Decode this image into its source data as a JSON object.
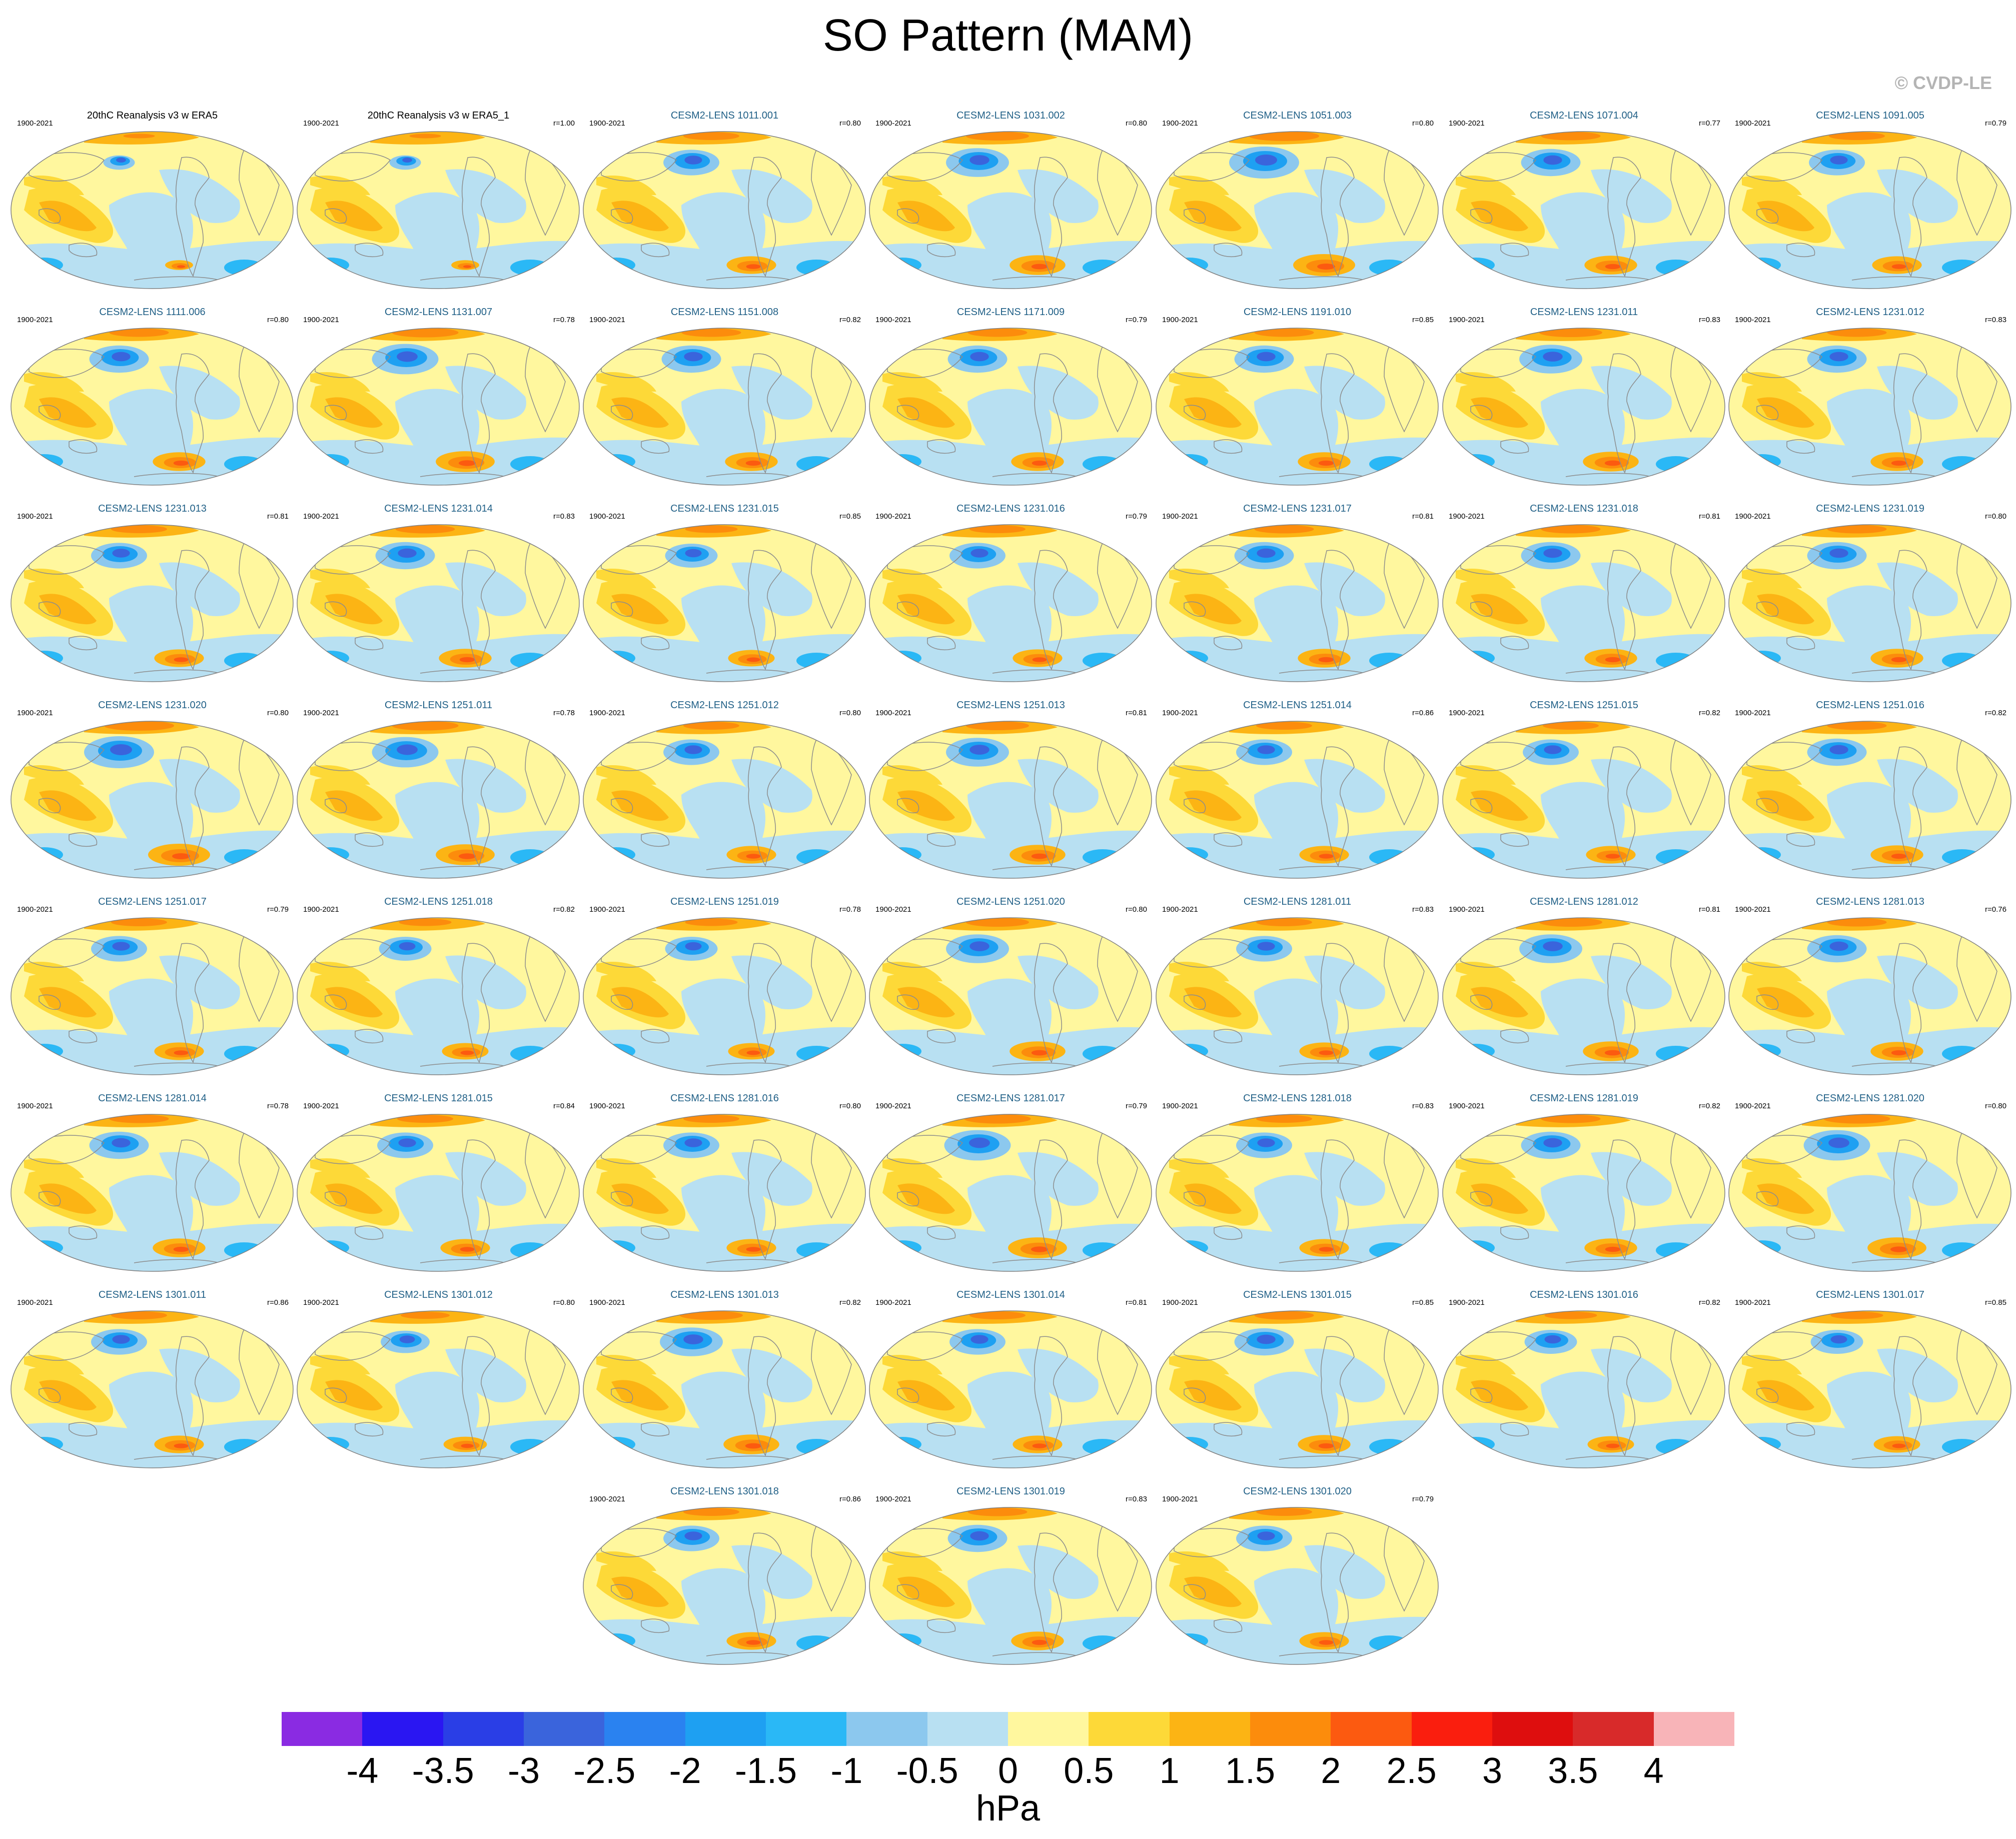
{
  "figure": {
    "title": "SO Pattern (MAM)",
    "watermark": "© CVDP-LE",
    "units": "hPa"
  },
  "panels": [
    {
      "title": "20thC Reanalysis v3 w ERA5",
      "period": "1900-2021",
      "r": "",
      "obs": true,
      "strength": 0.45
    },
    {
      "title": "20thC Reanalysis v3 w ERA5_1",
      "period": "1900-2021",
      "r": "r=1.00",
      "obs": true,
      "strength": 0.45
    },
    {
      "title": "CESM2-LENS 1011.001",
      "period": "1900-2021",
      "r": "r=0.80",
      "strength": 0.8
    },
    {
      "title": "CESM2-LENS 1031.002",
      "period": "1900-2021",
      "r": "r=0.80",
      "strength": 0.9
    },
    {
      "title": "CESM2-LENS 1051.003",
      "period": "1900-2021",
      "r": "r=0.80",
      "strength": 1.0
    },
    {
      "title": "CESM2-LENS 1071.004",
      "period": "1900-2021",
      "r": "r=0.77",
      "strength": 0.85
    },
    {
      "title": "CESM2-LENS 1091.005",
      "period": "1900-2021",
      "r": "r=0.79",
      "strength": 0.8
    },
    {
      "title": "CESM2-LENS 1111.006",
      "period": "1900-2021",
      "r": "r=0.80",
      "strength": 0.85
    },
    {
      "title": "CESM2-LENS 1131.007",
      "period": "1900-2021",
      "r": "r=0.78",
      "strength": 0.95
    },
    {
      "title": "CESM2-LENS 1151.008",
      "period": "1900-2021",
      "r": "r=0.82",
      "strength": 0.85
    },
    {
      "title": "CESM2-LENS 1171.009",
      "period": "1900-2021",
      "r": "r=0.79",
      "strength": 0.85
    },
    {
      "title": "CESM2-LENS 1191.010",
      "period": "1900-2021",
      "r": "r=0.85",
      "strength": 0.85
    },
    {
      "title": "CESM2-LENS 1231.011",
      "period": "1900-2021",
      "r": "r=0.83",
      "strength": 0.9
    },
    {
      "title": "CESM2-LENS 1231.012",
      "period": "1900-2021",
      "r": "r=0.83",
      "strength": 0.85
    },
    {
      "title": "CESM2-LENS 1231.013",
      "period": "1900-2021",
      "r": "r=0.81",
      "strength": 0.8
    },
    {
      "title": "CESM2-LENS 1231.014",
      "period": "1900-2021",
      "r": "r=0.83",
      "strength": 0.85
    },
    {
      "title": "CESM2-LENS 1231.015",
      "period": "1900-2021",
      "r": "r=0.85",
      "strength": 0.75
    },
    {
      "title": "CESM2-LENS 1231.016",
      "period": "1900-2021",
      "r": "r=0.79",
      "strength": 0.8
    },
    {
      "title": "CESM2-LENS 1231.017",
      "period": "1900-2021",
      "r": "r=0.81",
      "strength": 0.85
    },
    {
      "title": "CESM2-LENS 1231.018",
      "period": "1900-2021",
      "r": "r=0.81",
      "strength": 0.85
    },
    {
      "title": "CESM2-LENS 1231.019",
      "period": "1900-2021",
      "r": "r=0.80",
      "strength": 0.85
    },
    {
      "title": "CESM2-LENS 1231.020",
      "period": "1900-2021",
      "r": "r=0.80",
      "strength": 1.0
    },
    {
      "title": "CESM2-LENS 1251.011",
      "period": "1900-2021",
      "r": "r=0.78",
      "strength": 0.95
    },
    {
      "title": "CESM2-LENS 1251.012",
      "period": "1900-2021",
      "r": "r=0.80",
      "strength": 0.8
    },
    {
      "title": "CESM2-LENS 1251.013",
      "period": "1900-2021",
      "r": "r=0.81",
      "strength": 0.9
    },
    {
      "title": "CESM2-LENS 1251.014",
      "period": "1900-2021",
      "r": "r=0.86",
      "strength": 0.8
    },
    {
      "title": "CESM2-LENS 1251.015",
      "period": "1900-2021",
      "r": "r=0.82",
      "strength": 0.8
    },
    {
      "title": "CESM2-LENS 1251.016",
      "period": "1900-2021",
      "r": "r=0.82",
      "strength": 0.85
    },
    {
      "title": "CESM2-LENS 1251.017",
      "period": "1900-2021",
      "r": "r=0.79",
      "strength": 0.8
    },
    {
      "title": "CESM2-LENS 1251.018",
      "period": "1900-2021",
      "r": "r=0.82",
      "strength": 0.75
    },
    {
      "title": "CESM2-LENS 1251.019",
      "period": "1900-2021",
      "r": "r=0.78",
      "strength": 0.75
    },
    {
      "title": "CESM2-LENS 1251.020",
      "period": "1900-2021",
      "r": "r=0.80",
      "strength": 0.9
    },
    {
      "title": "CESM2-LENS 1281.011",
      "period": "1900-2021",
      "r": "r=0.83",
      "strength": 0.8
    },
    {
      "title": "CESM2-LENS 1281.012",
      "period": "1900-2021",
      "r": "r=0.81",
      "strength": 0.9
    },
    {
      "title": "CESM2-LENS 1281.013",
      "period": "1900-2021",
      "r": "r=0.76",
      "strength": 0.85
    },
    {
      "title": "CESM2-LENS 1281.014",
      "period": "1900-2021",
      "r": "r=0.78",
      "strength": 0.85
    },
    {
      "title": "CESM2-LENS 1281.015",
      "period": "1900-2021",
      "r": "r=0.84",
      "strength": 0.8
    },
    {
      "title": "CESM2-LENS 1281.016",
      "period": "1900-2021",
      "r": "r=0.80",
      "strength": 0.8
    },
    {
      "title": "CESM2-LENS 1281.017",
      "period": "1900-2021",
      "r": "r=0.79",
      "strength": 0.95
    },
    {
      "title": "CESM2-LENS 1281.018",
      "period": "1900-2021",
      "r": "r=0.83",
      "strength": 0.8
    },
    {
      "title": "CESM2-LENS 1281.019",
      "period": "1900-2021",
      "r": "r=0.82",
      "strength": 0.85
    },
    {
      "title": "CESM2-LENS 1281.020",
      "period": "1900-2021",
      "r": "r=0.80",
      "strength": 0.95
    },
    {
      "title": "CESM2-LENS 1301.011",
      "period": "1900-2021",
      "r": "r=0.86",
      "strength": 0.8
    },
    {
      "title": "CESM2-LENS 1301.012",
      "period": "1900-2021",
      "r": "r=0.80",
      "strength": 0.7
    },
    {
      "title": "CESM2-LENS 1301.013",
      "period": "1900-2021",
      "r": "r=0.82",
      "strength": 0.9
    },
    {
      "title": "CESM2-LENS 1301.014",
      "period": "1900-2021",
      "r": "r=0.81",
      "strength": 0.8
    },
    {
      "title": "CESM2-LENS 1301.015",
      "period": "1900-2021",
      "r": "r=0.85",
      "strength": 0.85
    },
    {
      "title": "CESM2-LENS 1301.016",
      "period": "1900-2021",
      "r": "r=0.82",
      "strength": 0.75
    },
    {
      "title": "CESM2-LENS 1301.017",
      "period": "1900-2021",
      "r": "r=0.85",
      "strength": 0.75
    },
    {
      "title": "CESM2-LENS 1301.018",
      "period": "1900-2021",
      "r": "r=0.86",
      "strength": 0.8
    },
    {
      "title": "CESM2-LENS 1301.019",
      "period": "1900-2021",
      "r": "r=0.83",
      "strength": 0.85
    },
    {
      "title": "CESM2-LENS 1301.020",
      "period": "1900-2021",
      "r": "r=0.79",
      "strength": 0.8
    }
  ],
  "colorbar": {
    "labels": [
      "-4",
      "-3.5",
      "-3",
      "-2.5",
      "-2",
      "-1.5",
      "-1",
      "-0.5",
      "0",
      "0.5",
      "1",
      "1.5",
      "2",
      "2.5",
      "3",
      "3.5",
      "4"
    ],
    "colors": [
      "#8a2be2",
      "#2a16f2",
      "#2a3ee6",
      "#3a64dc",
      "#2a82f0",
      "#1ea0f2",
      "#2ab8f6",
      "#8cc8ee",
      "#b8e0f2",
      "#fff79e",
      "#fdd938",
      "#fcb414",
      "#fc8c0c",
      "#fc5a10",
      "#fa1e0e",
      "#de0e0e",
      "#d82a2a",
      "#f8b4b8"
    ]
  },
  "styles": {
    "ocean_base": "#fff79e",
    "coast": "#8c8c8c",
    "obs_title_color": "#000000",
    "member_title_color": "#1f5f86"
  }
}
